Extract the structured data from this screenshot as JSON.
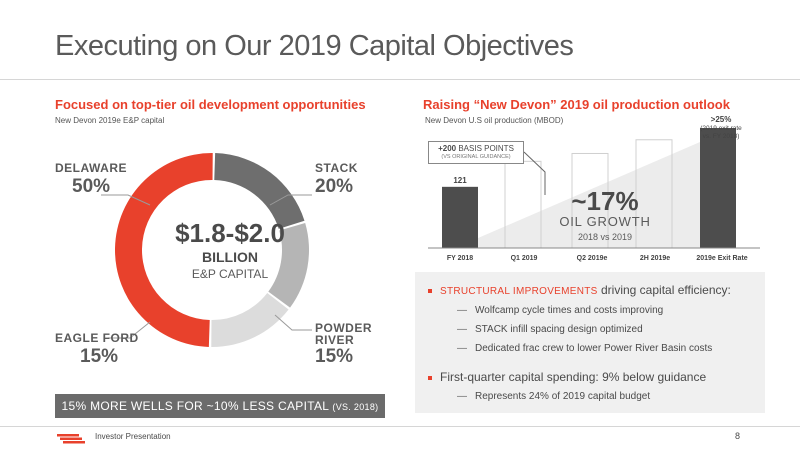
{
  "title": "Executing on Our 2019 Capital Objectives",
  "left": {
    "heading": "Focused on top-tier oil development opportunities",
    "subheading": "New Devon 2019e E&P capital",
    "segments": [
      {
        "label": "DELAWARE",
        "pct": "50%",
        "value": 50,
        "color": "#e8412c"
      },
      {
        "label": "STACK",
        "pct": "20%",
        "value": 20,
        "color": "#6e6e6e"
      },
      {
        "label_line1": "POWDER",
        "label_line2": "RIVER",
        "pct": "15%",
        "value": 15,
        "color": "#b5b5b5"
      },
      {
        "label": "EAGLE FORD",
        "pct": "15%",
        "value": 15,
        "color": "#dcdcdc"
      }
    ],
    "center_amount": "$1.8-$2.0",
    "center_unit": "BILLION",
    "center_caption": "E&P CAPITAL",
    "banner_main": "15% MORE WELLS FOR ~10% LESS CAPITAL ",
    "banner_small": "(VS. 2018)"
  },
  "right": {
    "heading": "Raising “New Devon” 2019 oil production outlook",
    "subheading": "New Devon U.S oil production (MBOD)",
    "callout_big_bold": "+200",
    "callout_big": " BASIS POINTS",
    "callout_small": "(VS ORIGINAL GUIDANCE)",
    "exit_pct": ">25%",
    "exit_note_1": "(2019 exit rate",
    "exit_note_2": "vs. FY 2018)",
    "growth_value": "~17%",
    "growth_label": "OIL GROWTH",
    "growth_sub": "2018 vs 2019"
  },
  "chart_data": {
    "type": "bar",
    "categories": [
      "FY 2018",
      "Q1 2019",
      "Q2 2019e",
      "2H 2019e",
      "2019e Exit Rate"
    ],
    "values": [
      121,
      134,
      138,
      145,
      151
    ],
    "data_labels": [
      "121",
      "",
      "",
      "",
      ""
    ],
    "styles": [
      "solid",
      "outline",
      "outline",
      "outline",
      "solid"
    ],
    "colors": {
      "solid": "#4d4d4d",
      "outline": "#d0d0d0"
    }
  },
  "bullets": [
    {
      "highlight": "STRUCTURAL IMPROVEMENTS",
      "text": " driving capital efficiency:",
      "subs": [
        "Wolfcamp cycle times and costs improving",
        "STACK infill spacing design optimized",
        "Dedicated frac crew to lower Power River Basin costs"
      ]
    },
    {
      "highlight": "",
      "text": "First-quarter capital spending: 9% below guidance",
      "subs": [
        "Represents 24% of 2019 capital budget"
      ]
    }
  ],
  "footer": {
    "text": "Investor Presentation",
    "page": "8"
  },
  "colors": {
    "accent": "#e8412c",
    "dark_gray": "#4d4d4d"
  }
}
